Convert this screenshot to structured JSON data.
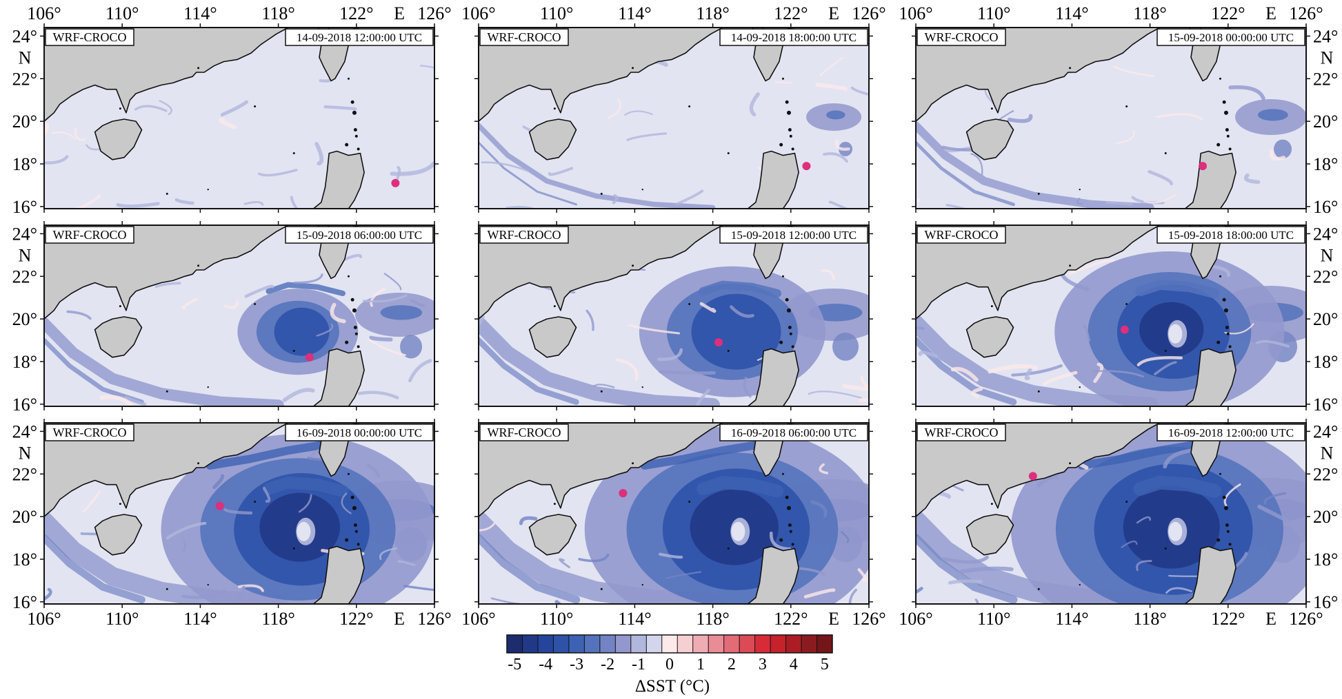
{
  "figure": {
    "model_label": "WRF-CROCO",
    "x_ticks": [
      "106°",
      "110°",
      "114°",
      "118°",
      "122°",
      "126°"
    ],
    "x_hemisphere": "E",
    "y_ticks": [
      "24°",
      "22°",
      "20°",
      "18°",
      "16°"
    ],
    "y_hemisphere": "N",
    "lon_range": [
      106,
      126
    ],
    "lat_range": [
      15.9,
      24.4
    ],
    "land_color": "#c9c9c9",
    "ocean_color": "#e2e4f2",
    "marker_color": "#dc2f7c"
  },
  "panels": [
    {
      "timestamp": "14-09-2018 12:00:00 UTC",
      "intensity": 0.05,
      "typhoon_center": [
        124.0,
        17.1
      ]
    },
    {
      "timestamp": "14-09-2018 18:00:00 UTC",
      "intensity": 0.25,
      "typhoon_center": [
        122.8,
        17.9
      ]
    },
    {
      "timestamp": "15-09-2018 00:00:00 UTC",
      "intensity": 0.4,
      "typhoon_center": [
        120.7,
        17.9
      ]
    },
    {
      "timestamp": "15-09-2018 06:00:00 UTC",
      "intensity": 0.55,
      "typhoon_center": [
        119.6,
        18.2
      ]
    },
    {
      "timestamp": "15-09-2018 12:00:00 UTC",
      "intensity": 0.7,
      "typhoon_center": [
        118.3,
        18.9
      ]
    },
    {
      "timestamp": "15-09-2018 18:00:00 UTC",
      "intensity": 0.8,
      "typhoon_center": [
        116.7,
        19.5
      ]
    },
    {
      "timestamp": "16-09-2018 00:00:00 UTC",
      "intensity": 0.9,
      "typhoon_center": [
        115.0,
        20.5
      ]
    },
    {
      "timestamp": "16-09-2018 06:00:00 UTC",
      "intensity": 0.95,
      "typhoon_center": [
        113.4,
        21.1
      ]
    },
    {
      "timestamp": "16-09-2018 12:00:00 UTC",
      "intensity": 1.0,
      "typhoon_center": [
        112.0,
        21.9
      ]
    }
  ],
  "colorbar": {
    "label": "ΔSST (°C)",
    "tick_labels": [
      "-5",
      "-4",
      "-3",
      "-2",
      "-1",
      "0",
      "1",
      "2",
      "3",
      "4",
      "5"
    ],
    "colors": [
      "#1c2c6e",
      "#213887",
      "#25449c",
      "#2e52a8",
      "#3d62b3",
      "#5573bc",
      "#7383c3",
      "#9298cd",
      "#b1b6dc",
      "#d2d5ec",
      "#fde9e9",
      "#f6cfd2",
      "#f0acb3",
      "#ea8c96",
      "#e36a77",
      "#dc4a58",
      "#d72c38",
      "#c5222c",
      "#aa1d25",
      "#8c1b20",
      "#741518"
    ]
  }
}
